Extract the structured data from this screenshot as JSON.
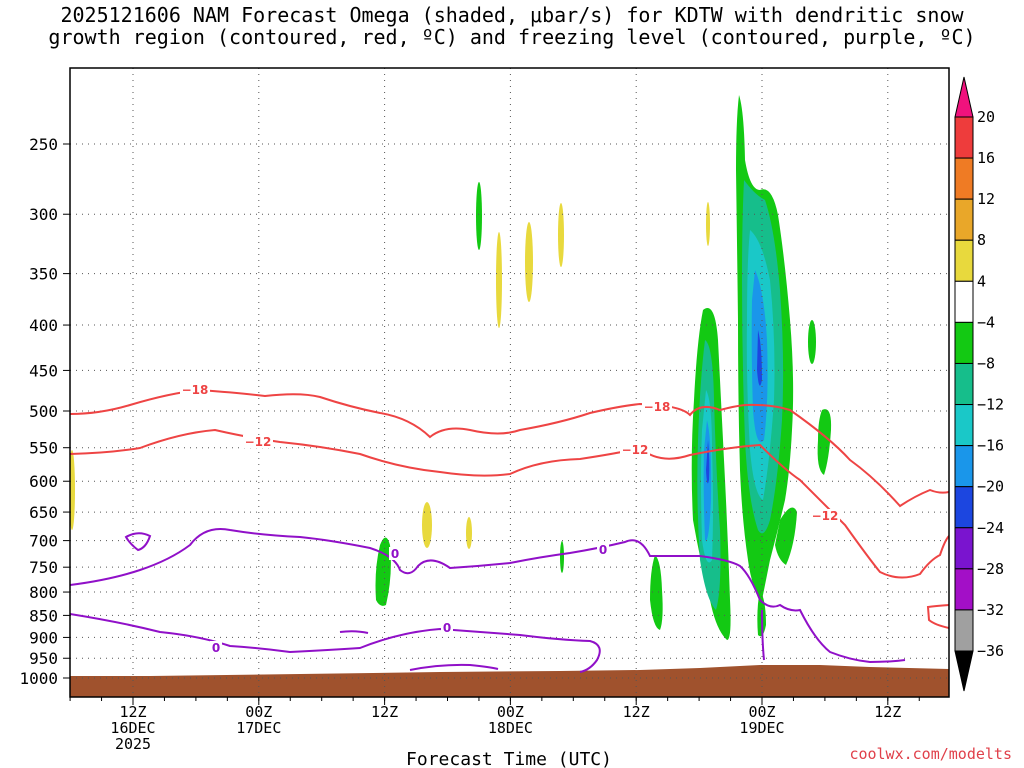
{
  "header": {
    "title_line1": "2025121606 NAM Forecast Omega (shaded, μbar/s) for KDTW with dendritic snow",
    "title_line2": "growth region (contoured, red, ºC) and freezing level (contoured, purple, ºC)"
  },
  "footer": {
    "credit": "coolwx.com/modelts"
  },
  "chart_data": {
    "type": "heatmap",
    "title": "2025121606 NAM Forecast Omega (shaded, μbar/s) for KDTW with dendritic snow growth region (contoured, red, ºC) and freezing level (contoured, purple, ºC)",
    "xlabel": "Forecast Time (UTC)",
    "ylabel": "",
    "y_scale": "log (pressure, inverted)",
    "y_ticks": [
      250,
      300,
      350,
      400,
      450,
      500,
      550,
      600,
      650,
      700,
      750,
      800,
      850,
      900,
      950,
      1000
    ],
    "x_ticks": [
      {
        "line1": "12Z",
        "line2": "16DEC",
        "line3": "2025"
      },
      {
        "line1": "00Z",
        "line2": "17DEC",
        "line3": ""
      },
      {
        "line1": "12Z",
        "line2": "",
        "line3": ""
      },
      {
        "line1": "00Z",
        "line2": "18DEC",
        "line3": ""
      },
      {
        "line1": "12Z",
        "line2": "",
        "line3": ""
      },
      {
        "line1": "00Z",
        "line2": "19DEC",
        "line3": ""
      },
      {
        "line1": "12Z",
        "line2": "",
        "line3": ""
      }
    ],
    "grid": true,
    "legend": "colorbar right",
    "colorbar": {
      "labels": [
        "20",
        "16",
        "12",
        "8",
        "4",
        "−4",
        "−8",
        "−12",
        "−16",
        "−20",
        "−24",
        "−28",
        "−32",
        "−36"
      ],
      "colors": [
        "#f0127d",
        "#ee3c3c",
        "#ef7b24",
        "#e9a729",
        "#e8d93d",
        "#ffffff",
        "#13c913",
        "#16be8b",
        "#1ac8c8",
        "#1a96ea",
        "#1c46e0",
        "#7a14cf",
        "#a30fc7",
        "#a0a0a0",
        "#000000"
      ]
    },
    "contour_labels": {
      "red": [
        "−18",
        "−12",
        "−18",
        "−12",
        "−12"
      ],
      "purple": [
        "0",
        "0",
        "0",
        "0"
      ]
    },
    "series_colors": {
      "dgz": "#ee4444",
      "freezing": "#9010c8",
      "terrain": "#a0522d"
    }
  }
}
